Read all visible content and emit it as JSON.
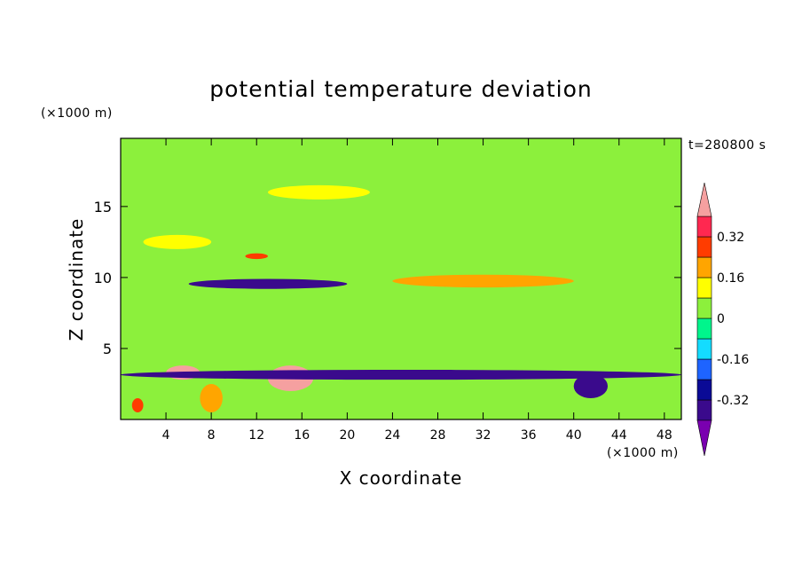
{
  "chart_data": {
    "type": "heatmap",
    "title": "potential temperature deviation",
    "xlabel": "X coordinate",
    "ylabel": "Z coordinate",
    "x_unit": "(×1000 m)",
    "y_unit": "(×1000 m)",
    "time_label": "t=280800 s",
    "xlim": [
      0,
      49.5
    ],
    "ylim": [
      0,
      19.8
    ],
    "x_ticks": [
      4,
      8,
      12,
      16,
      20,
      24,
      28,
      32,
      36,
      40,
      44,
      48
    ],
    "y_ticks": [
      5,
      10,
      15
    ],
    "colorbar": {
      "levels": [
        -0.4,
        -0.32,
        -0.24,
        -0.16,
        -0.08,
        0,
        0.08,
        0.16,
        0.24,
        0.32,
        0.4
      ],
      "tick_labels": [
        "-0.32",
        "-0.16",
        "0",
        "0.16",
        "0.32"
      ],
      "tick_values": [
        -0.32,
        -0.16,
        0,
        0.16,
        0.32
      ],
      "colors": [
        "#7a00b0",
        "#3a0a8c",
        "#0a0a96",
        "#1e64ff",
        "#14dcff",
        "#00f58c",
        "#8cf03c",
        "#ffff00",
        "#ffa500",
        "#ff3c00",
        "#ff2850",
        "#f5a0a0"
      ],
      "extend": "both"
    },
    "features": [
      {
        "x": [
          0,
          49.5
        ],
        "z": [
          0,
          19.8
        ],
        "value": 0
      },
      {
        "x": [
          2,
          8
        ],
        "z": [
          12,
          13
        ],
        "value": 0.12
      },
      {
        "x": [
          13,
          22
        ],
        "z": [
          15.5,
          16.5
        ],
        "value": 0.12
      },
      {
        "x": [
          11,
          13
        ],
        "z": [
          11.3,
          11.7
        ],
        "value": 0.24
      },
      {
        "x": [
          6,
          20
        ],
        "z": [
          9.2,
          9.9
        ],
        "value": -0.36
      },
      {
        "x": [
          24,
          40
        ],
        "z": [
          9.3,
          10.2
        ],
        "value": 0.2
      },
      {
        "x": [
          4,
          7
        ],
        "z": [
          2.8,
          3.8
        ],
        "value": 0.44
      },
      {
        "x": [
          13,
          17
        ],
        "z": [
          2.0,
          3.8
        ],
        "value": 0.44
      },
      {
        "x": [
          0,
          49.5
        ],
        "z": [
          2.8,
          3.5
        ],
        "value": -0.34
      },
      {
        "x": [
          40,
          43
        ],
        "z": [
          1.5,
          3.2
        ],
        "value": -0.38
      },
      {
        "x": [
          7,
          9
        ],
        "z": [
          0.5,
          2.5
        ],
        "value": 0.2
      },
      {
        "x": [
          1,
          2
        ],
        "z": [
          0.5,
          1.5
        ],
        "value": 0.3
      }
    ]
  }
}
